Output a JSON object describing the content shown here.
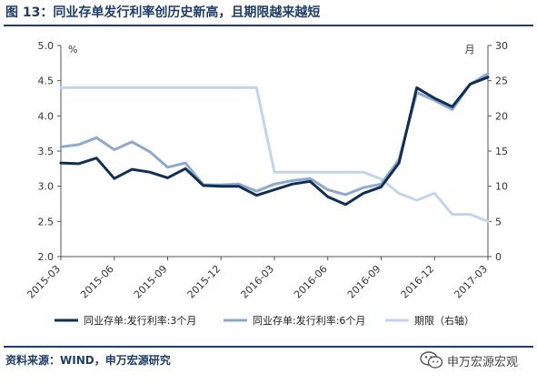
{
  "header": {
    "title": "图 13：同业存单发行利率创历史新高，且期限越来越短"
  },
  "footer": {
    "source": "资料来源：WIND，申万宏源研究",
    "watermark": "申万宏源宏观"
  },
  "colors": {
    "title": "#1f3d6b",
    "series_3m": "#0f2f56",
    "series_6m": "#8ea9cc",
    "series_term": "#c3d5ea"
  },
  "icons": {
    "watermark": "wechat-icon"
  },
  "chart_data": {
    "type": "line",
    "x_ticks": [
      "2015-03",
      "2015-06",
      "2015-09",
      "2015-12",
      "2016-03",
      "2016-06",
      "2016-09",
      "2016-12",
      "2017-03"
    ],
    "left_axis": {
      "ylim": [
        2.0,
        5.0
      ],
      "ticks": [
        "2.0",
        "2.5",
        "3.0",
        "3.5",
        "4.0",
        "4.5",
        "5.0"
      ],
      "unit": "%"
    },
    "right_axis": {
      "ylim": [
        0,
        30
      ],
      "ticks": [
        "0",
        "5",
        "10",
        "15",
        "20",
        "25",
        "30"
      ],
      "unit": "月"
    },
    "grid": false,
    "legend_position": "bottom",
    "series": [
      {
        "name": "同业存单:发行利率:3个月",
        "axis": "left",
        "x": [
          "2015-03",
          "2015-04",
          "2015-05",
          "2015-06",
          "2015-07",
          "2015-08",
          "2015-09",
          "2015-10",
          "2015-11",
          "2015-12",
          "2016-01",
          "2016-02",
          "2016-03",
          "2016-04",
          "2016-05",
          "2016-06",
          "2016-07",
          "2016-08",
          "2016-09",
          "2016-10",
          "2016-11",
          "2016-12",
          "2017-01",
          "2017-02",
          "2017-03"
        ],
        "values": [
          3.33,
          3.32,
          3.4,
          3.11,
          3.24,
          3.2,
          3.12,
          3.25,
          3.01,
          3.0,
          3.0,
          2.87,
          2.95,
          3.03,
          3.07,
          2.85,
          2.74,
          2.9,
          2.99,
          3.33,
          4.4,
          4.25,
          4.13,
          4.45,
          4.55
        ]
      },
      {
        "name": "同业存单:发行利率:6个月",
        "axis": "left",
        "x": [
          "2015-03",
          "2015-04",
          "2015-05",
          "2015-06",
          "2015-07",
          "2015-08",
          "2015-09",
          "2015-10",
          "2015-11",
          "2015-12",
          "2016-01",
          "2016-02",
          "2016-03",
          "2016-04",
          "2016-05",
          "2016-06",
          "2016-07",
          "2016-08",
          "2016-09",
          "2016-10",
          "2016-11",
          "2016-12",
          "2017-01",
          "2017-02",
          "2017-03"
        ],
        "values": [
          3.56,
          3.59,
          3.69,
          3.52,
          3.63,
          3.49,
          3.27,
          3.33,
          3.02,
          3.02,
          3.03,
          2.93,
          3.03,
          3.08,
          3.11,
          2.95,
          2.88,
          2.98,
          3.03,
          3.38,
          4.33,
          4.22,
          4.09,
          4.45,
          4.6
        ]
      },
      {
        "name": "期限（右轴）",
        "axis": "right",
        "x": [
          "2015-03",
          "2016-02",
          "2016-03",
          "2016-08",
          "2016-09",
          "2016-10",
          "2016-11",
          "2016-12",
          "2017-01",
          "2017-02",
          "2017-03"
        ],
        "values": [
          24,
          24,
          12,
          12,
          11,
          9,
          8,
          9,
          6,
          6,
          5
        ]
      }
    ]
  }
}
